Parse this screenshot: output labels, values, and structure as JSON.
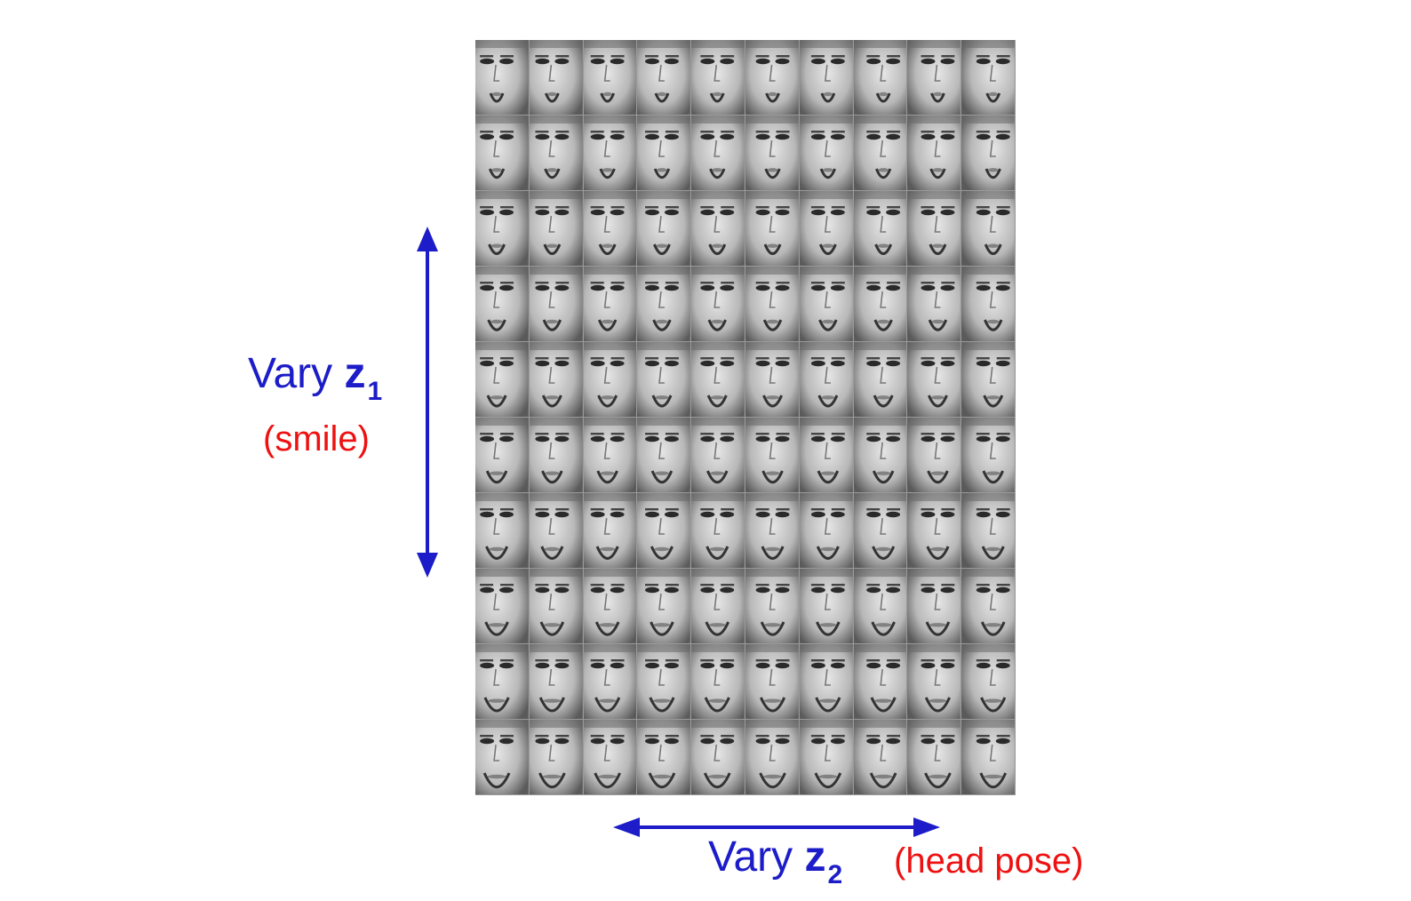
{
  "grid": {
    "rows": 10,
    "cols": 10
  },
  "z1_label": {
    "prefix": "Vary ",
    "var": "z",
    "sub": "1",
    "note": "(smile)"
  },
  "z2_label": {
    "prefix": "Vary ",
    "var": "z",
    "sub": "2",
    "note": "(head pose)"
  },
  "colors": {
    "arrow": "#1c1cc8",
    "label_blue": "#1c1cc8",
    "label_red": "#ee1111"
  }
}
